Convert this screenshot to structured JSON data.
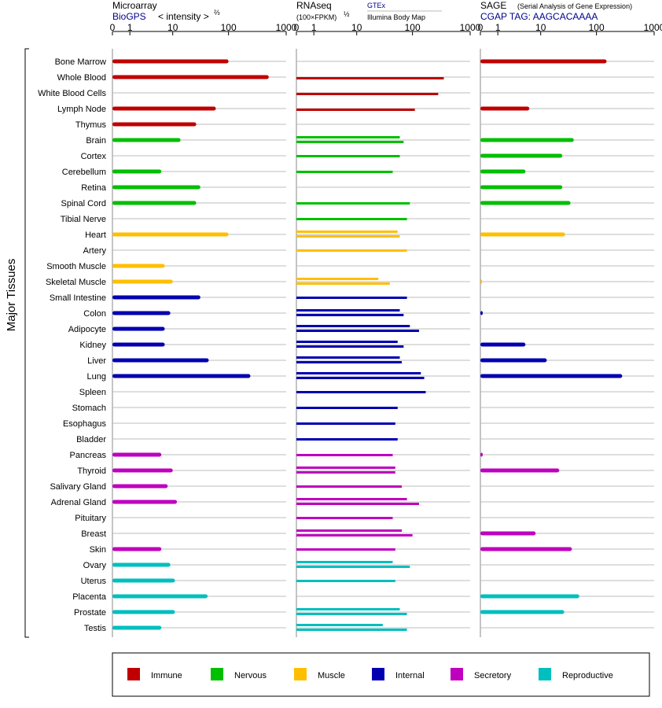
{
  "y_axis_label": "Major Tissues",
  "colors": {
    "Immune": "#c00000",
    "Nervous": "#00bf00",
    "Muscle": "#ffbf00",
    "Internal": "#0000b0",
    "Secretory": "#bf00bf",
    "Reproductive": "#00bfbf"
  },
  "legend": [
    "Immune",
    "Nervous",
    "Muscle",
    "Internal",
    "Secretory",
    "Reproductive"
  ],
  "panels": [
    {
      "key": "microarray",
      "title": "Microarray",
      "subtitle": "BioGPS",
      "unit_label": "< intensity >",
      "unit_exponent": "⅔",
      "extra_label": "",
      "extra_label_2": "",
      "ticks": [
        "0",
        "1",
        "10",
        "100",
        "1000"
      ]
    },
    {
      "key": "rnaseq",
      "title": "RNAseq",
      "subtitle": "",
      "unit_label": "(100×FPKM)",
      "unit_exponent": "½",
      "extra_label": "GTEx",
      "extra_label_2": "Illumina Body Map",
      "ticks": [
        "0",
        "1",
        "10",
        "100",
        "1000"
      ]
    },
    {
      "key": "sage",
      "title": "SAGE",
      "subtitle": "CGAP TAG: AAGCACAAAA",
      "unit_label": "",
      "unit_exponent": "",
      "extra_label": "(Serial Analysis of Gene Expression)",
      "extra_label_2": "",
      "ticks": [
        "0",
        "1",
        "10",
        "100",
        "1000"
      ]
    }
  ],
  "chart_data": {
    "type": "bar",
    "orientation": "horizontal",
    "x_scale": "symlog",
    "xlim": [
      0,
      1000
    ],
    "categories": [
      "Bone Marrow",
      "Whole Blood",
      "White Blood Cells",
      "Lymph Node",
      "Thymus",
      "Brain",
      "Cortex",
      "Cerebellum",
      "Retina",
      "Spinal Cord",
      "Tibial Nerve",
      "Heart",
      "Artery",
      "Smooth Muscle",
      "Skeletal Muscle",
      "Small Intestine",
      "Colon",
      "Adipocyte",
      "Kidney",
      "Liver",
      "Lung",
      "Spleen",
      "Stomach",
      "Esophagus",
      "Bladder",
      "Pancreas",
      "Thyroid",
      "Salivary Gland",
      "Adrenal Gland",
      "Pituitary",
      "Breast",
      "Skin",
      "Ovary",
      "Uterus",
      "Placenta",
      "Prostate",
      "Testis"
    ],
    "groups": [
      "Immune",
      "Immune",
      "Immune",
      "Immune",
      "Immune",
      "Nervous",
      "Nervous",
      "Nervous",
      "Nervous",
      "Nervous",
      "Nervous",
      "Muscle",
      "Muscle",
      "Muscle",
      "Muscle",
      "Internal",
      "Internal",
      "Internal",
      "Internal",
      "Internal",
      "Internal",
      "Internal",
      "Internal",
      "Internal",
      "Internal",
      "Secretory",
      "Secretory",
      "Secretory",
      "Secretory",
      "Secretory",
      "Secretory",
      "Secretory",
      "Reproductive",
      "Reproductive",
      "Reproductive",
      "Reproductive",
      "Reproductive"
    ],
    "microarray": [
      100,
      500,
      null,
      60,
      27,
      14,
      null,
      6,
      32,
      27,
      null,
      100,
      null,
      7,
      10,
      32,
      9,
      7,
      7,
      45,
      240,
      null,
      null,
      null,
      null,
      6,
      10,
      8,
      12,
      null,
      null,
      6,
      9,
      11,
      43,
      11,
      6
    ],
    "rnaseq_gtex": [
      null,
      350,
      280,
      110,
      null,
      60,
      60,
      45,
      null,
      90,
      80,
      55,
      80,
      null,
      25,
      80,
      60,
      90,
      55,
      60,
      140,
      170,
      55,
      50,
      55,
      45,
      50,
      65,
      80,
      45,
      65,
      50,
      45,
      50,
      null,
      60,
      30
    ],
    "rnaseq_bodymap": [
      null,
      null,
      null,
      null,
      null,
      70,
      null,
      null,
      null,
      null,
      null,
      60,
      null,
      null,
      40,
      null,
      70,
      130,
      70,
      65,
      160,
      null,
      null,
      null,
      null,
      null,
      50,
      null,
      130,
      null,
      100,
      null,
      90,
      null,
      null,
      80,
      80
    ],
    "sage": [
      150,
      null,
      null,
      6,
      null,
      40,
      25,
      5,
      25,
      35,
      null,
      28,
      null,
      null,
      0.05,
      null,
      0.1,
      null,
      5,
      13,
      280,
      null,
      null,
      null,
      null,
      0.1,
      22,
      null,
      null,
      null,
      8,
      37,
      null,
      null,
      50,
      27,
      null
    ]
  }
}
